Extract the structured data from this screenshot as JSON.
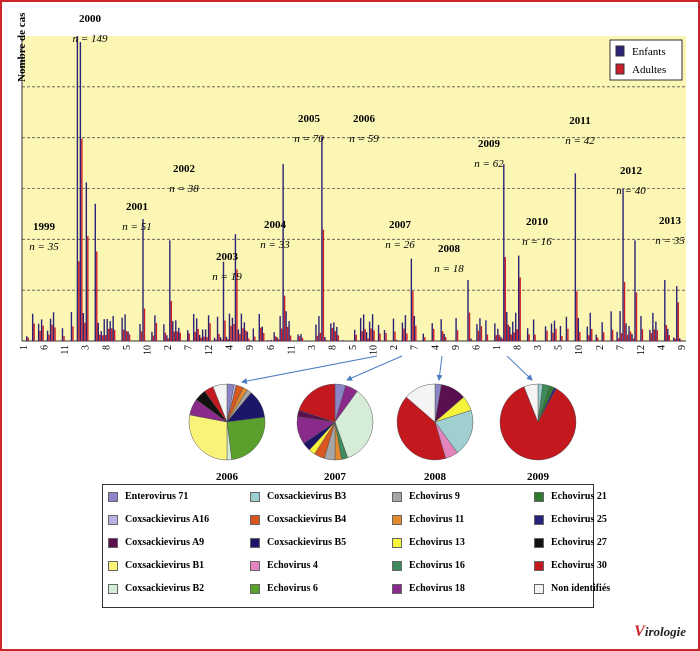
{
  "y_axis_label": "Nombre de cas",
  "legend": {
    "enfants": "Enfants",
    "adultes": "Adultes"
  },
  "colors": {
    "enfants": "#2a2378",
    "adultes": "#cc1e28",
    "plot_bg": "#fbf6b4",
    "frame": "#c8262b"
  },
  "chart_data": [
    {
      "type": "bar",
      "ylabel": "Nombre de cas",
      "series": [
        {
          "name": "Enfants"
        },
        {
          "name": "Adultes"
        }
      ],
      "x_tick_labels": [
        "1",
        "6",
        "11",
        "3",
        "8",
        "5",
        "10",
        "2",
        "7",
        "12",
        "4",
        "9",
        "6",
        "11",
        "3",
        "8",
        "5",
        "10",
        "2",
        "7",
        "4",
        "9",
        "6",
        "1",
        "8",
        "3",
        "5",
        "10",
        "2",
        "7",
        "12",
        "4",
        "9"
      ],
      "year_annotations": [
        {
          "year": "1999",
          "n": "n = 35"
        },
        {
          "year": "2000",
          "n": "n = 149"
        },
        {
          "year": "2001",
          "n": "n = 51"
        },
        {
          "year": "2002",
          "n": "n = 38"
        },
        {
          "year": "2003",
          "n": "n = 19"
        },
        {
          "year": "2004",
          "n": "n = 33"
        },
        {
          "year": "2005",
          "n": "n = 70"
        },
        {
          "year": "2006",
          "n": "n = 59"
        },
        {
          "year": "2007",
          "n": "n = 26"
        },
        {
          "year": "2008",
          "n": "n = 18"
        },
        {
          "year": "2009",
          "n": "n = 62"
        },
        {
          "year": "2010",
          "n": "n = 16"
        },
        {
          "year": "2011",
          "n": "n = 42"
        },
        {
          "year": "2012",
          "n": "n = 40"
        },
        {
          "year": "2013",
          "n": "n = 35"
        }
      ],
      "grid": true,
      "legend_position": "top-right"
    },
    {
      "type": "pie",
      "title": "2006",
      "slices": [
        {
          "label": "Enterovirus 71",
          "value": 3
        },
        {
          "label": "Coxsackievirus A16",
          "value": 1
        },
        {
          "label": "Coxsackievirus B4",
          "value": 3
        },
        {
          "label": "Echovirus 11",
          "value": 2
        },
        {
          "label": "Echovirus 9",
          "value": 2
        },
        {
          "label": "Coxsackievirus B5",
          "value": 12
        },
        {
          "label": "Echovirus 6",
          "value": 25
        },
        {
          "label": "Coxsackievirus B2",
          "value": 2
        },
        {
          "label": "Coxsackievirus B1",
          "value": 28
        },
        {
          "label": "Echovirus 18",
          "value": 7
        },
        {
          "label": "Echovirus 27",
          "value": 5
        },
        {
          "label": "Echovirus 30",
          "value": 4
        },
        {
          "label": "Non identifiés",
          "value": 6
        }
      ]
    },
    {
      "type": "pie",
      "title": "2007",
      "slices": [
        {
          "label": "Enterovirus 71",
          "value": 5
        },
        {
          "label": "Echovirus 18",
          "value": 6
        },
        {
          "label": "Coxsackievirus B2",
          "value": 38
        },
        {
          "label": "Echovirus 16",
          "value": 3
        },
        {
          "label": "Echovirus 11",
          "value": 3
        },
        {
          "label": "Echovirus 9",
          "value": 5
        },
        {
          "label": "Coxsackievirus B4",
          "value": 5
        },
        {
          "label": "Echovirus 13",
          "value": 3
        },
        {
          "label": "Coxsackievirus B5",
          "value": 4
        },
        {
          "label": "Echovirus 18",
          "value": 13
        },
        {
          "label": "Coxsackievirus A9",
          "value": 3
        },
        {
          "label": "Echovirus 30",
          "value": 22
        }
      ]
    },
    {
      "type": "pie",
      "title": "2008",
      "slices": [
        {
          "label": "Enterovirus 71",
          "value": 3
        },
        {
          "label": "Coxsackievirus A9",
          "value": 12
        },
        {
          "label": "Echovirus 13",
          "value": 7
        },
        {
          "label": "Coxsackievirus B3",
          "value": 22
        },
        {
          "label": "Echovirus 4",
          "value": 6
        },
        {
          "label": "Echovirus 30",
          "value": 45
        },
        {
          "label": "Non identifiés",
          "value": 15
        }
      ]
    },
    {
      "type": "pie",
      "title": "2009",
      "slices": [
        {
          "label": "Coxsackievirus B3",
          "value": 2
        },
        {
          "label": "Echovirus 16",
          "value": 3
        },
        {
          "label": "Echovirus 21",
          "value": 2
        },
        {
          "label": "Echovirus 25",
          "value": 1
        },
        {
          "label": "Echovirus 30",
          "value": 86
        },
        {
          "label": "Non identifiés",
          "value": 6
        }
      ]
    }
  ],
  "pie_legend": [
    {
      "label": "Enterovirus 71",
      "color": "#8c86c8"
    },
    {
      "label": "Coxsackievirus B3",
      "color": "#9fcfcf"
    },
    {
      "label": "Echovirus 9",
      "color": "#a6a6a6"
    },
    {
      "label": "Echovirus 21",
      "color": "#2f7a2f"
    },
    {
      "label": "Coxsackievirus A16",
      "color": "#b8b2e0"
    },
    {
      "label": "Coxsackievirus B4",
      "color": "#d9561e"
    },
    {
      "label": "Echovirus 11",
      "color": "#e3892e"
    },
    {
      "label": "Echovirus 25",
      "color": "#2a2080"
    },
    {
      "label": "Coxsackievirus A9",
      "color": "#5a1050"
    },
    {
      "label": "Coxsackievirus B5",
      "color": "#1c1668"
    },
    {
      "label": "Echovirus 13",
      "color": "#f7f33a"
    },
    {
      "label": "Echovirus 27",
      "color": "#111111"
    },
    {
      "label": "Coxsackievirus B1",
      "color": "#f9f37a"
    },
    {
      "label": "Echovirus 4",
      "color": "#e583bd"
    },
    {
      "label": "Echovirus 16",
      "color": "#3f8a5a"
    },
    {
      "label": "Echovirus 30",
      "color": "#c4181f"
    },
    {
      "label": "Coxsackievirus B2",
      "color": "#d5ecd9"
    },
    {
      "label": "Echovirus 6",
      "color": "#5aa02c"
    },
    {
      "label": "Echovirus 18",
      "color": "#8a2a8a"
    },
    {
      "label": "Non identifiés",
      "color": "#f4f4f4"
    }
  ],
  "logo": {
    "mark": "V",
    "rest": "irologie"
  }
}
